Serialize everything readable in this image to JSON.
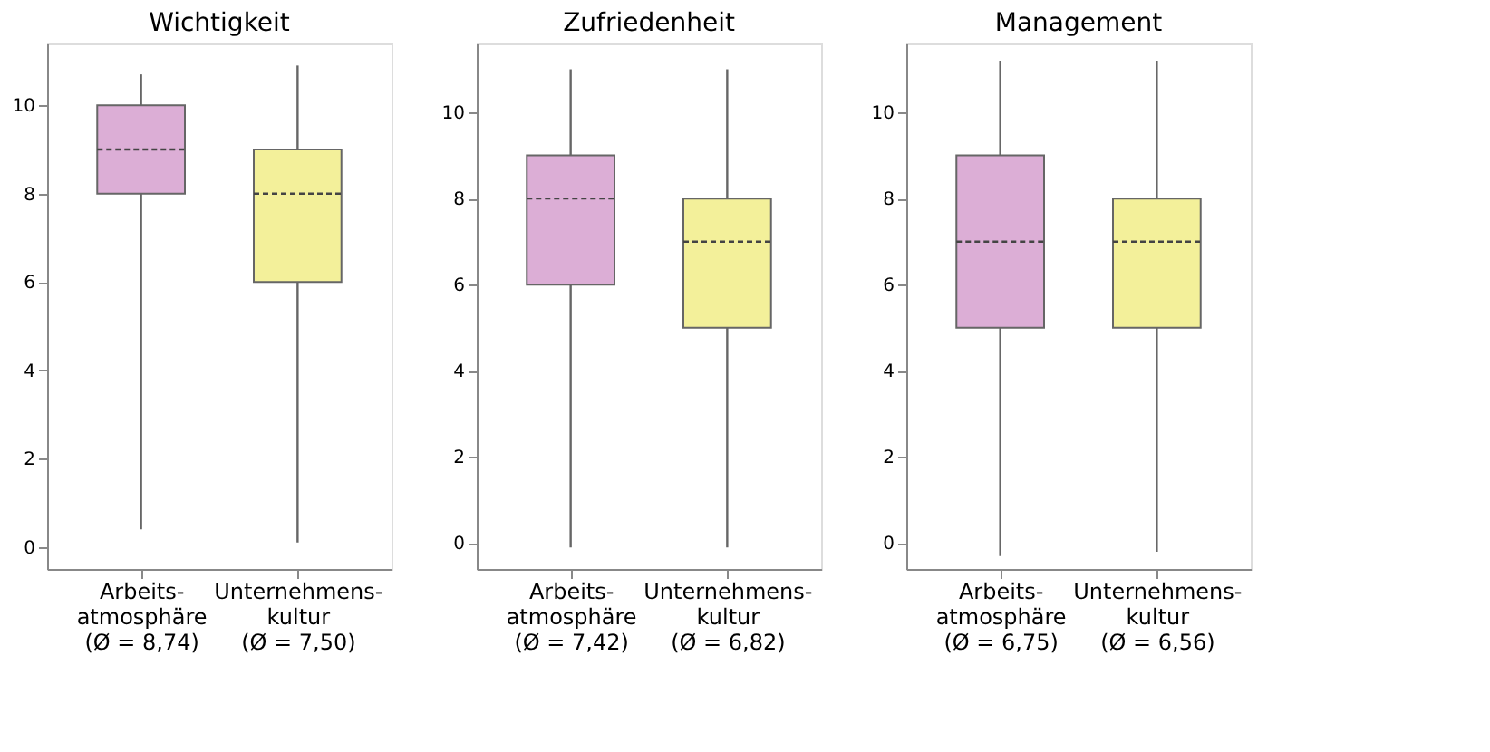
{
  "chart_data": [
    {
      "type": "box",
      "title": "Wichtigkeit",
      "categories": [
        "Arbeits-\natmosphäre\n(Ø = 8,74)",
        "Unternehmens-\nkultur\n(Ø = 7,50)"
      ],
      "colors": [
        "#dcaed6",
        "#f3f09a"
      ],
      "ylim": [
        -0.5,
        11.4
      ],
      "yticks": [
        0,
        2,
        4,
        6,
        8,
        10
      ],
      "grid": false,
      "boxes": [
        {
          "low": 0.4,
          "q1": 8,
          "median": 9,
          "q3": 10,
          "high": 10.7
        },
        {
          "low": 0.1,
          "q1": 6,
          "median": 8,
          "q3": 9,
          "high": 10.9
        }
      ]
    },
    {
      "type": "box",
      "title": "Zufriedenheit",
      "categories": [
        "Arbeits-\natmosphäre\n(Ø = 7,42)",
        "Unternehmens-\nkultur\n(Ø = 6,82)"
      ],
      "colors": [
        "#dcaed6",
        "#f3f09a"
      ],
      "ylim": [
        -0.6,
        11.6
      ],
      "yticks": [
        0,
        2,
        4,
        6,
        8,
        10
      ],
      "grid": false,
      "boxes": [
        {
          "low": -0.1,
          "q1": 6,
          "median": 8,
          "q3": 9,
          "high": 11
        },
        {
          "low": -0.1,
          "q1": 5,
          "median": 7,
          "q3": 8,
          "high": 11
        }
      ]
    },
    {
      "type": "box",
      "title": "Management",
      "categories": [
        "Arbeits-\natmosphäre\n(Ø = 6,75)",
        "Unternehmens-\nkultur\n(Ø = 6,56)"
      ],
      "colors": [
        "#dcaed6",
        "#f3f09a"
      ],
      "ylim": [
        -0.6,
        11.6
      ],
      "yticks": [
        0,
        2,
        4,
        6,
        8,
        10
      ],
      "grid": false,
      "boxes": [
        {
          "low": -0.3,
          "q1": 5,
          "median": 7,
          "q3": 9,
          "high": 11.2
        },
        {
          "low": -0.2,
          "q1": 5,
          "median": 7,
          "q3": 8,
          "high": 11.2
        }
      ]
    }
  ]
}
